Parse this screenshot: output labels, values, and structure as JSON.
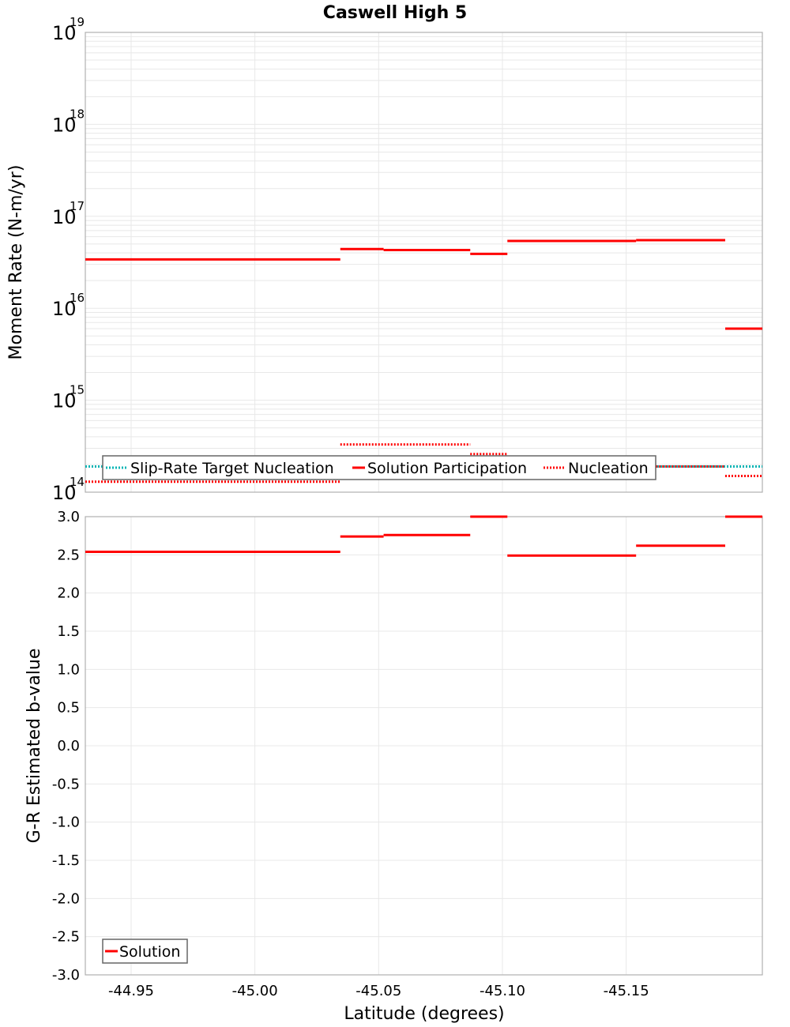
{
  "chart_data": [
    {
      "type": "line",
      "subtype": "step-segments",
      "title": "Caswell High 5",
      "xlabel": "Latitude (degrees)",
      "ylabel": "Moment Rate (N-m/yr)",
      "yscale": "log",
      "ylim": [
        100000000000000.0,
        1e+19
      ],
      "xlim": [
        -44.9315,
        -45.205
      ],
      "x_reversed": true,
      "yticks": [
        "10^14",
        "10^15",
        "10^16",
        "10^17",
        "10^18",
        "10^19"
      ],
      "xticks": [
        "-44.95",
        "-45.00",
        "-45.05",
        "-45.10",
        "-45.15"
      ],
      "grid": true,
      "legend_position": "bottom-left inside",
      "legend": [
        "Slip-Rate Target Nucleation",
        "Solution Participation",
        "Nucleation"
      ],
      "series": [
        {
          "name": "Slip-Rate Target Nucleation",
          "style": "dotted",
          "color": "#00b4b4",
          "segments": [
            {
              "x0": -44.9315,
              "x1": -45.205,
              "y": 190000000000000.0
            }
          ]
        },
        {
          "name": "Solution Participation",
          "style": "solid",
          "color": "#ff0000",
          "segments": [
            {
              "x0": -44.9315,
              "x1": -45.0345,
              "y": 3.4e+16
            },
            {
              "x0": -45.0345,
              "x1": -45.052,
              "y": 4.4e+16
            },
            {
              "x0": -45.052,
              "x1": -45.087,
              "y": 4.3e+16
            },
            {
              "x0": -45.087,
              "x1": -45.102,
              "y": 3.9e+16
            },
            {
              "x0": -45.102,
              "x1": -45.154,
              "y": 5.4e+16
            },
            {
              "x0": -45.154,
              "x1": -45.19,
              "y": 5.5e+16
            },
            {
              "x0": -45.19,
              "x1": -45.205,
              "y": 6000000000000000.0
            }
          ]
        },
        {
          "name": "Nucleation",
          "style": "dotted",
          "color": "#ff0000",
          "segments": [
            {
              "x0": -44.9315,
              "x1": -45.0345,
              "y": 130000000000000.0
            },
            {
              "x0": -45.0345,
              "x1": -45.087,
              "y": 330000000000000.0
            },
            {
              "x0": -45.087,
              "x1": -45.102,
              "y": 260000000000000.0
            },
            {
              "x0": -45.102,
              "x1": -45.19,
              "y": 190000000000000.0
            },
            {
              "x0": -45.19,
              "x1": -45.205,
              "y": 150000000000000.0
            }
          ]
        }
      ]
    },
    {
      "type": "line",
      "subtype": "step-segments",
      "title": "",
      "xlabel": "Latitude (degrees)",
      "ylabel": "G-R Estimated b-value",
      "ylim": [
        -3.0,
        3.0
      ],
      "xlim": [
        -44.9315,
        -45.205
      ],
      "x_reversed": true,
      "yticks": [
        "3.0",
        "2.5",
        "2.0",
        "1.5",
        "1.0",
        "0.5",
        "0.0",
        "-0.5",
        "-1.0",
        "-1.5",
        "-2.0",
        "-2.5",
        "-3.0"
      ],
      "xticks": [
        "-44.95",
        "-45.00",
        "-45.05",
        "-45.10",
        "-45.15"
      ],
      "grid": true,
      "legend_position": "bottom-left inside",
      "legend": [
        "Solution"
      ],
      "series": [
        {
          "name": "Solution",
          "style": "solid",
          "color": "#ff0000",
          "segments": [
            {
              "x0": -44.9315,
              "x1": -45.0345,
              "y": 2.54
            },
            {
              "x0": -45.0345,
              "x1": -45.052,
              "y": 2.74
            },
            {
              "x0": -45.052,
              "x1": -45.087,
              "y": 2.76
            },
            {
              "x0": -45.087,
              "x1": -45.102,
              "y": 3.0
            },
            {
              "x0": -45.102,
              "x1": -45.154,
              "y": 2.49
            },
            {
              "x0": -45.154,
              "x1": -45.19,
              "y": 2.62
            },
            {
              "x0": -45.19,
              "x1": -45.205,
              "y": 3.0
            }
          ]
        }
      ]
    }
  ],
  "labels": {
    "title": "Caswell High 5",
    "top_ylabel": "Moment Rate (N-m/yr)",
    "bottom_ylabel": "G-R Estimated b-value",
    "xlabel": "Latitude (degrees)",
    "legend_top": [
      "Slip-Rate Target Nucleation",
      "Solution Participation",
      "Nucleation"
    ],
    "legend_bottom": [
      "Solution"
    ]
  },
  "colors": {
    "solution": "#ff0000",
    "target": "#00b4b4",
    "grid": "#e8e8e8",
    "frame": "#b0b0b0"
  }
}
